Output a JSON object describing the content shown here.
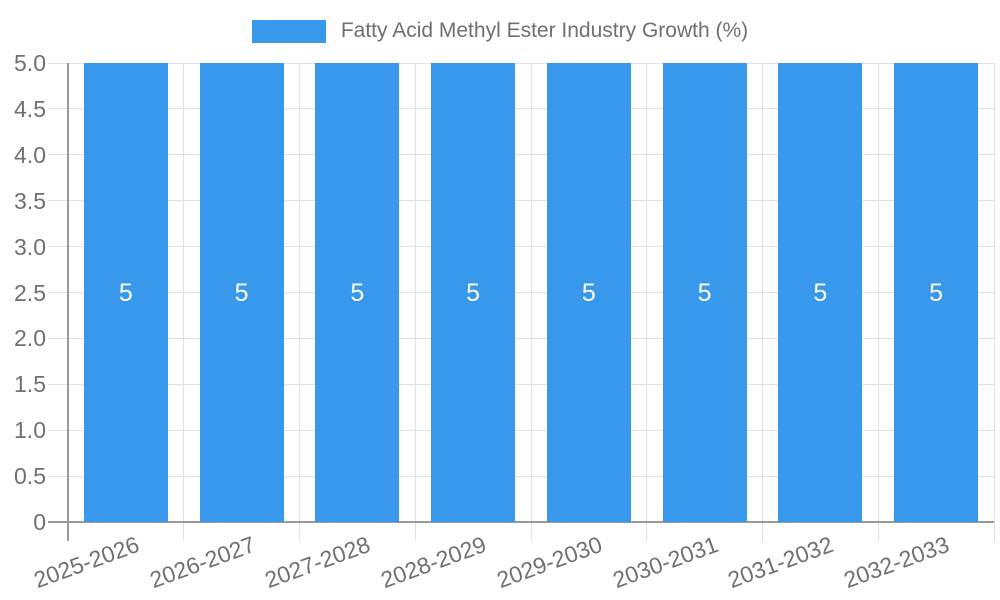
{
  "legend": {
    "label": "Fatty Acid Methyl Ester Industry Growth (%)"
  },
  "chart_data": {
    "type": "bar",
    "title": "Fatty Acid Methyl Ester Industry Growth (%)",
    "xlabel": "",
    "ylabel": "",
    "categories": [
      "2025-2026",
      "2026-2027",
      "2027-2028",
      "2028-2029",
      "2029-2030",
      "2030-2031",
      "2031-2032",
      "2032-2033"
    ],
    "series": [
      {
        "name": "Fatty Acid Methyl Ester Industry Growth (%)",
        "values": [
          5,
          5,
          5,
          5,
          5,
          5,
          5,
          5
        ]
      }
    ],
    "bar_value_labels": [
      "5",
      "5",
      "5",
      "5",
      "5",
      "5",
      "5",
      "5"
    ],
    "ylim": [
      0,
      5
    ],
    "ytick_values": [
      0,
      0.5,
      1,
      1.5,
      2,
      2.5,
      3,
      3.5,
      4,
      4.5,
      5
    ],
    "ytick_labels": [
      "0",
      "0.5",
      "1.0",
      "1.5",
      "2.0",
      "2.5",
      "3.0",
      "3.5",
      "4.0",
      "4.5",
      "5.0"
    ],
    "x_tick_rotation_deg": -20,
    "grid": true,
    "legend_position": "top",
    "colors": {
      "bar": "#3898EC",
      "grid": "#E1E1E1",
      "axis": "#999999",
      "text": "#707070",
      "bar_label": "#FFFFFF",
      "background": "#FFFFFF"
    }
  }
}
